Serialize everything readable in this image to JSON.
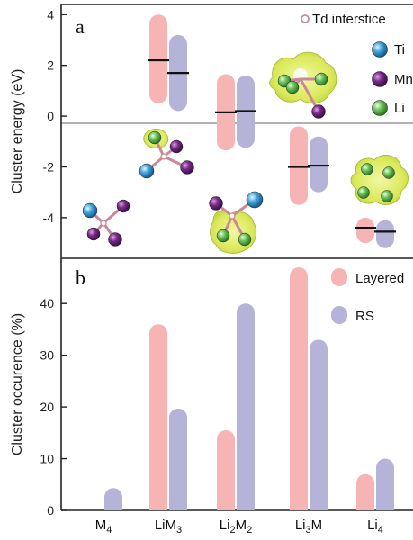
{
  "colors": {
    "layered": "#f7b4b4",
    "rs": "#b6b3d9",
    "ti": "#43a5dd",
    "mn": "#7b2a8c",
    "li": "#6cc35a",
    "td": "#d9a1ae",
    "isosurface": "#d8e84c"
  },
  "chart_data": [
    {
      "type": "bar",
      "panel": "a",
      "ylabel": "Cluster energy (eV)",
      "ylim": [
        -5.6,
        4.4
      ],
      "yticks": [
        -4,
        -2,
        0,
        2,
        4
      ],
      "categories": [
        "M4",
        "LiM3",
        "Li2M2",
        "Li3M",
        "Li4"
      ],
      "series": [
        {
          "name": "Layered",
          "ranges": [
            null,
            [
              0.5,
              4.0
            ],
            [
              -1.35,
              1.65
            ],
            [
              -3.5,
              -0.4
            ],
            [
              -5.0,
              -4.0
            ]
          ],
          "means": [
            null,
            2.2,
            0.15,
            -2.0,
            -4.4
          ]
        },
        {
          "name": "RS",
          "ranges": [
            null,
            [
              0.2,
              3.2
            ],
            [
              -1.25,
              1.6
            ],
            [
              -3.0,
              -0.8
            ],
            [
              -5.2,
              -4.1
            ]
          ],
          "means": [
            null,
            1.7,
            0.2,
            -1.95,
            -4.55
          ]
        }
      ],
      "legend": {
        "placement": "top-right",
        "entries": [
          "Td interstice",
          "Ti",
          "Mn",
          "Li"
        ]
      }
    },
    {
      "type": "bar",
      "panel": "b",
      "ylabel": "Cluster occurence (%)",
      "ylim": [
        0,
        47
      ],
      "yticks": [
        0,
        10,
        20,
        30,
        40
      ],
      "categories": [
        "M4",
        "LiM3",
        "Li2M2",
        "Li3M",
        "Li4"
      ],
      "series": [
        {
          "name": "Layered",
          "values": [
            0,
            36,
            15.5,
            47,
            7
          ]
        },
        {
          "name": "RS",
          "values": [
            4.3,
            19.7,
            40,
            33,
            10
          ]
        }
      ],
      "legend": {
        "placement": "top-right",
        "entries": [
          "Layered",
          "RS"
        ]
      }
    }
  ],
  "panel_a": {
    "label": "a",
    "ylabel": "Cluster energy (eV)",
    "ytick_labels": [
      "4",
      "2",
      "0",
      "-2",
      "-4"
    ],
    "legend": {
      "td": "Td interstice",
      "ti": "Ti",
      "mn": "Mn",
      "li": "Li"
    }
  },
  "panel_b": {
    "label": "b",
    "ylabel": "Cluster occurence (%)",
    "ytick_labels": [
      "40",
      "30",
      "20",
      "10",
      "0"
    ],
    "legend": {
      "layered": "Layered",
      "rs": "RS"
    },
    "categories": [
      {
        "base": "M",
        "sub": "4"
      },
      {
        "base": "LiM",
        "sub": "3"
      },
      {
        "base": "Li",
        "sub": "2",
        "base2": "M",
        "sub2": "2"
      },
      {
        "base": "Li",
        "sub": "3",
        "base2": "M"
      },
      {
        "base": "Li",
        "sub": "4"
      }
    ]
  }
}
